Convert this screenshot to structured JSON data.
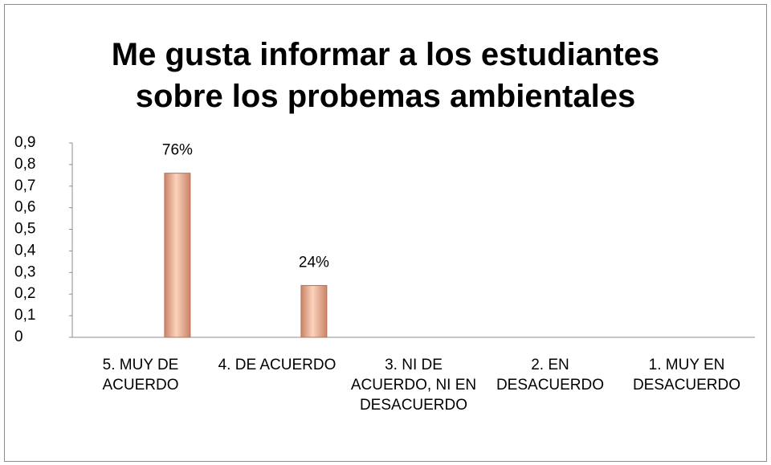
{
  "chart_data": {
    "type": "bar",
    "title": "Me gusta informar a los estudiantes sobre los probemas ambientales",
    "categories": [
      "5. MUY DE ACUERDO",
      "4. DE ACUERDO",
      "3. NI DE ACUERDO, NI EN DESACUERDO",
      "2. EN DESACUERDO",
      "1. MUY EN DESACUERDO"
    ],
    "values": [
      0.76,
      0.24,
      0,
      0,
      0
    ],
    "value_labels": [
      "76%",
      "24%",
      null,
      null,
      null
    ],
    "color": "#f2b596",
    "ylim": [
      0,
      0.9
    ],
    "yticks": [
      0,
      {
        "value": 0.1,
        "label": "0,1"
      },
      {
        "value": 0.2,
        "label": "0,2"
      },
      {
        "value": 0.3,
        "label": "0,3"
      },
      {
        "value": 0.4,
        "label": "0,4"
      },
      {
        "value": 0.5,
        "label": "0,5"
      },
      {
        "value": 0.6,
        "label": "0,6"
      },
      {
        "value": 0.7,
        "label": "0,7"
      },
      {
        "value": 0.8,
        "label": "0,8"
      },
      {
        "value": 0.9,
        "label": "0,9"
      }
    ],
    "grid": false
  }
}
